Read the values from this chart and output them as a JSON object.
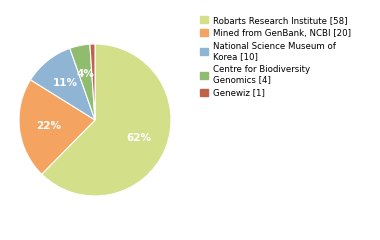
{
  "slices": [
    58,
    20,
    10,
    4,
    1
  ],
  "legend_labels": [
    "Robarts Research Institute [58]",
    "Mined from GenBank, NCBI [20]",
    "National Science Museum of\nKorea [10]",
    "Centre for Biodiversity\nGenomics [4]",
    "Genewiz [1]"
  ],
  "colors": [
    "#d4df8a",
    "#f4a460",
    "#90b4d4",
    "#8fbc6f",
    "#c0614a"
  ],
  "background_color": "#ffffff",
  "text_color": "#ffffff",
  "font_size": 7.5
}
